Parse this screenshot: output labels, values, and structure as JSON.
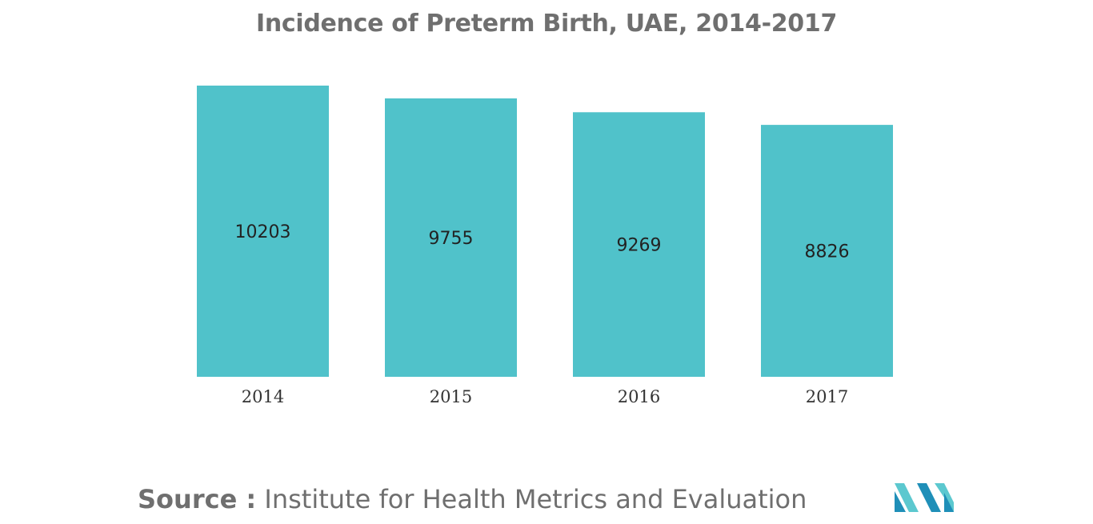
{
  "title": "Incidence of Preterm Birth, UAE, 2014-2017",
  "source": {
    "label": "Source :",
    "text": "Institute for Health Metrics and Evaluation"
  },
  "colors": {
    "bar": "#50c2ca",
    "axis_text": "#333333",
    "label_text": "#222222",
    "logo_dark": "#1f8fb8",
    "logo_light": "#5cc8cf"
  },
  "logo": {
    "icon": "mordor-logo-icon"
  },
  "chart_data": {
    "type": "bar",
    "title": "Incidence of Preterm Birth, UAE, 2014-2017",
    "categories": [
      "2014",
      "2015",
      "2016",
      "2017"
    ],
    "values": [
      10203,
      9755,
      9269,
      8826
    ],
    "data_labels": [
      "10203",
      "9755",
      "9269",
      "8826"
    ],
    "xlabel": "",
    "ylabel": "",
    "ylim": [
      0,
      10203
    ],
    "grid": false,
    "legend": "none"
  }
}
